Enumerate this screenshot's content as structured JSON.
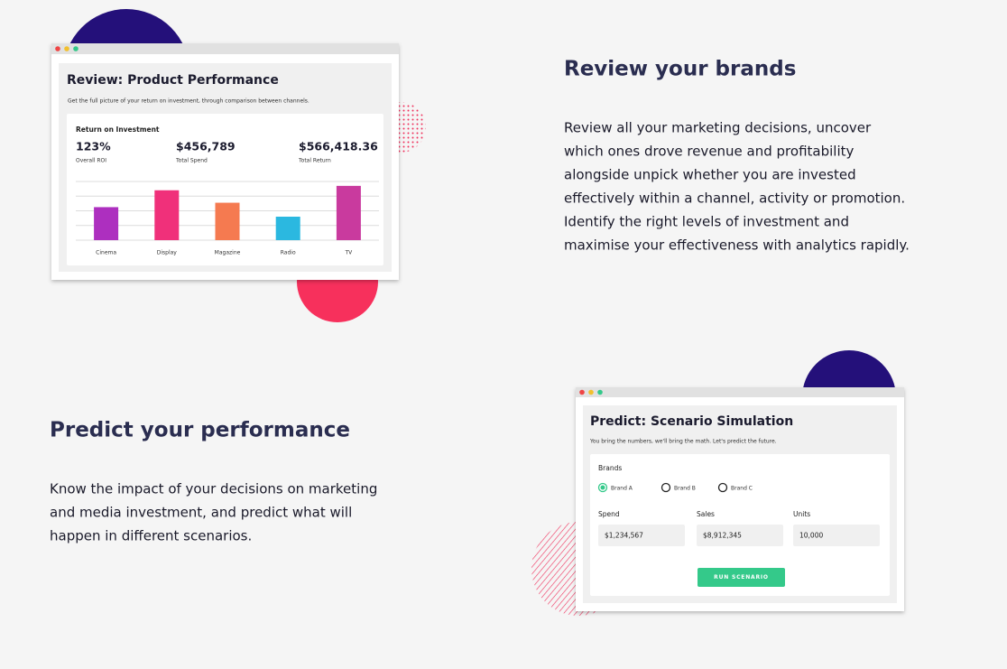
{
  "review": {
    "heading": "Review your brands",
    "paragraph": [
      "Review all your marketing decisions, uncover",
      "which ones drove revenue and profitability",
      "alongside unpick whether you are invested",
      "effectively within a channel, activity or promotion.",
      "Identify the right levels of investment and",
      "maximise your effectiveness with analytics rapidly."
    ],
    "window": {
      "title": "Review: Product Performance",
      "subtitle": "Get the full picture of your return on investment, through comparison between channels.",
      "card_heading": "Return on Investment",
      "metrics": [
        {
          "value": "123%",
          "label": "Overall ROI"
        },
        {
          "value": "$456,789",
          "label": "Total Spend"
        },
        {
          "value": "$566,418.36",
          "label": "Total Return"
        }
      ],
      "chart": {
        "type": "bar",
        "categories": [
          "Cinema",
          "Display",
          "Magazine",
          "Radio",
          "TV"
        ],
        "values": [
          2.25,
          3.4,
          2.55,
          1.6,
          3.7
        ],
        "colors": [
          "#ad2fbf",
          "#f0307a",
          "#f57a50",
          "#2bb8e0",
          "#c93a9e"
        ],
        "ylim": [
          0,
          4
        ],
        "yticks": [
          0,
          1,
          2,
          3,
          4
        ],
        "grid": true
      }
    }
  },
  "predict": {
    "heading": "Predict your performance",
    "paragraph": [
      "Know the impact of your decisions on marketing",
      "and media investment, and predict what will",
      "happen in different scenarios."
    ],
    "window": {
      "title": "Predict: Scenario Simulation",
      "subtitle": "You bring the numbers, we'll bring the math. Let's predict the future.",
      "brands_label": "Brands",
      "brands": [
        {
          "label": "Brand A",
          "selected": true
        },
        {
          "label": "Brand B",
          "selected": false
        },
        {
          "label": "Brand C",
          "selected": false
        }
      ],
      "fields": [
        {
          "label": "Spend",
          "value": "$1,234,567"
        },
        {
          "label": "Sales",
          "value": "$8,912,345"
        },
        {
          "label": "Units",
          "value": "10,000"
        }
      ],
      "button": "RUN SCENARIO"
    }
  }
}
